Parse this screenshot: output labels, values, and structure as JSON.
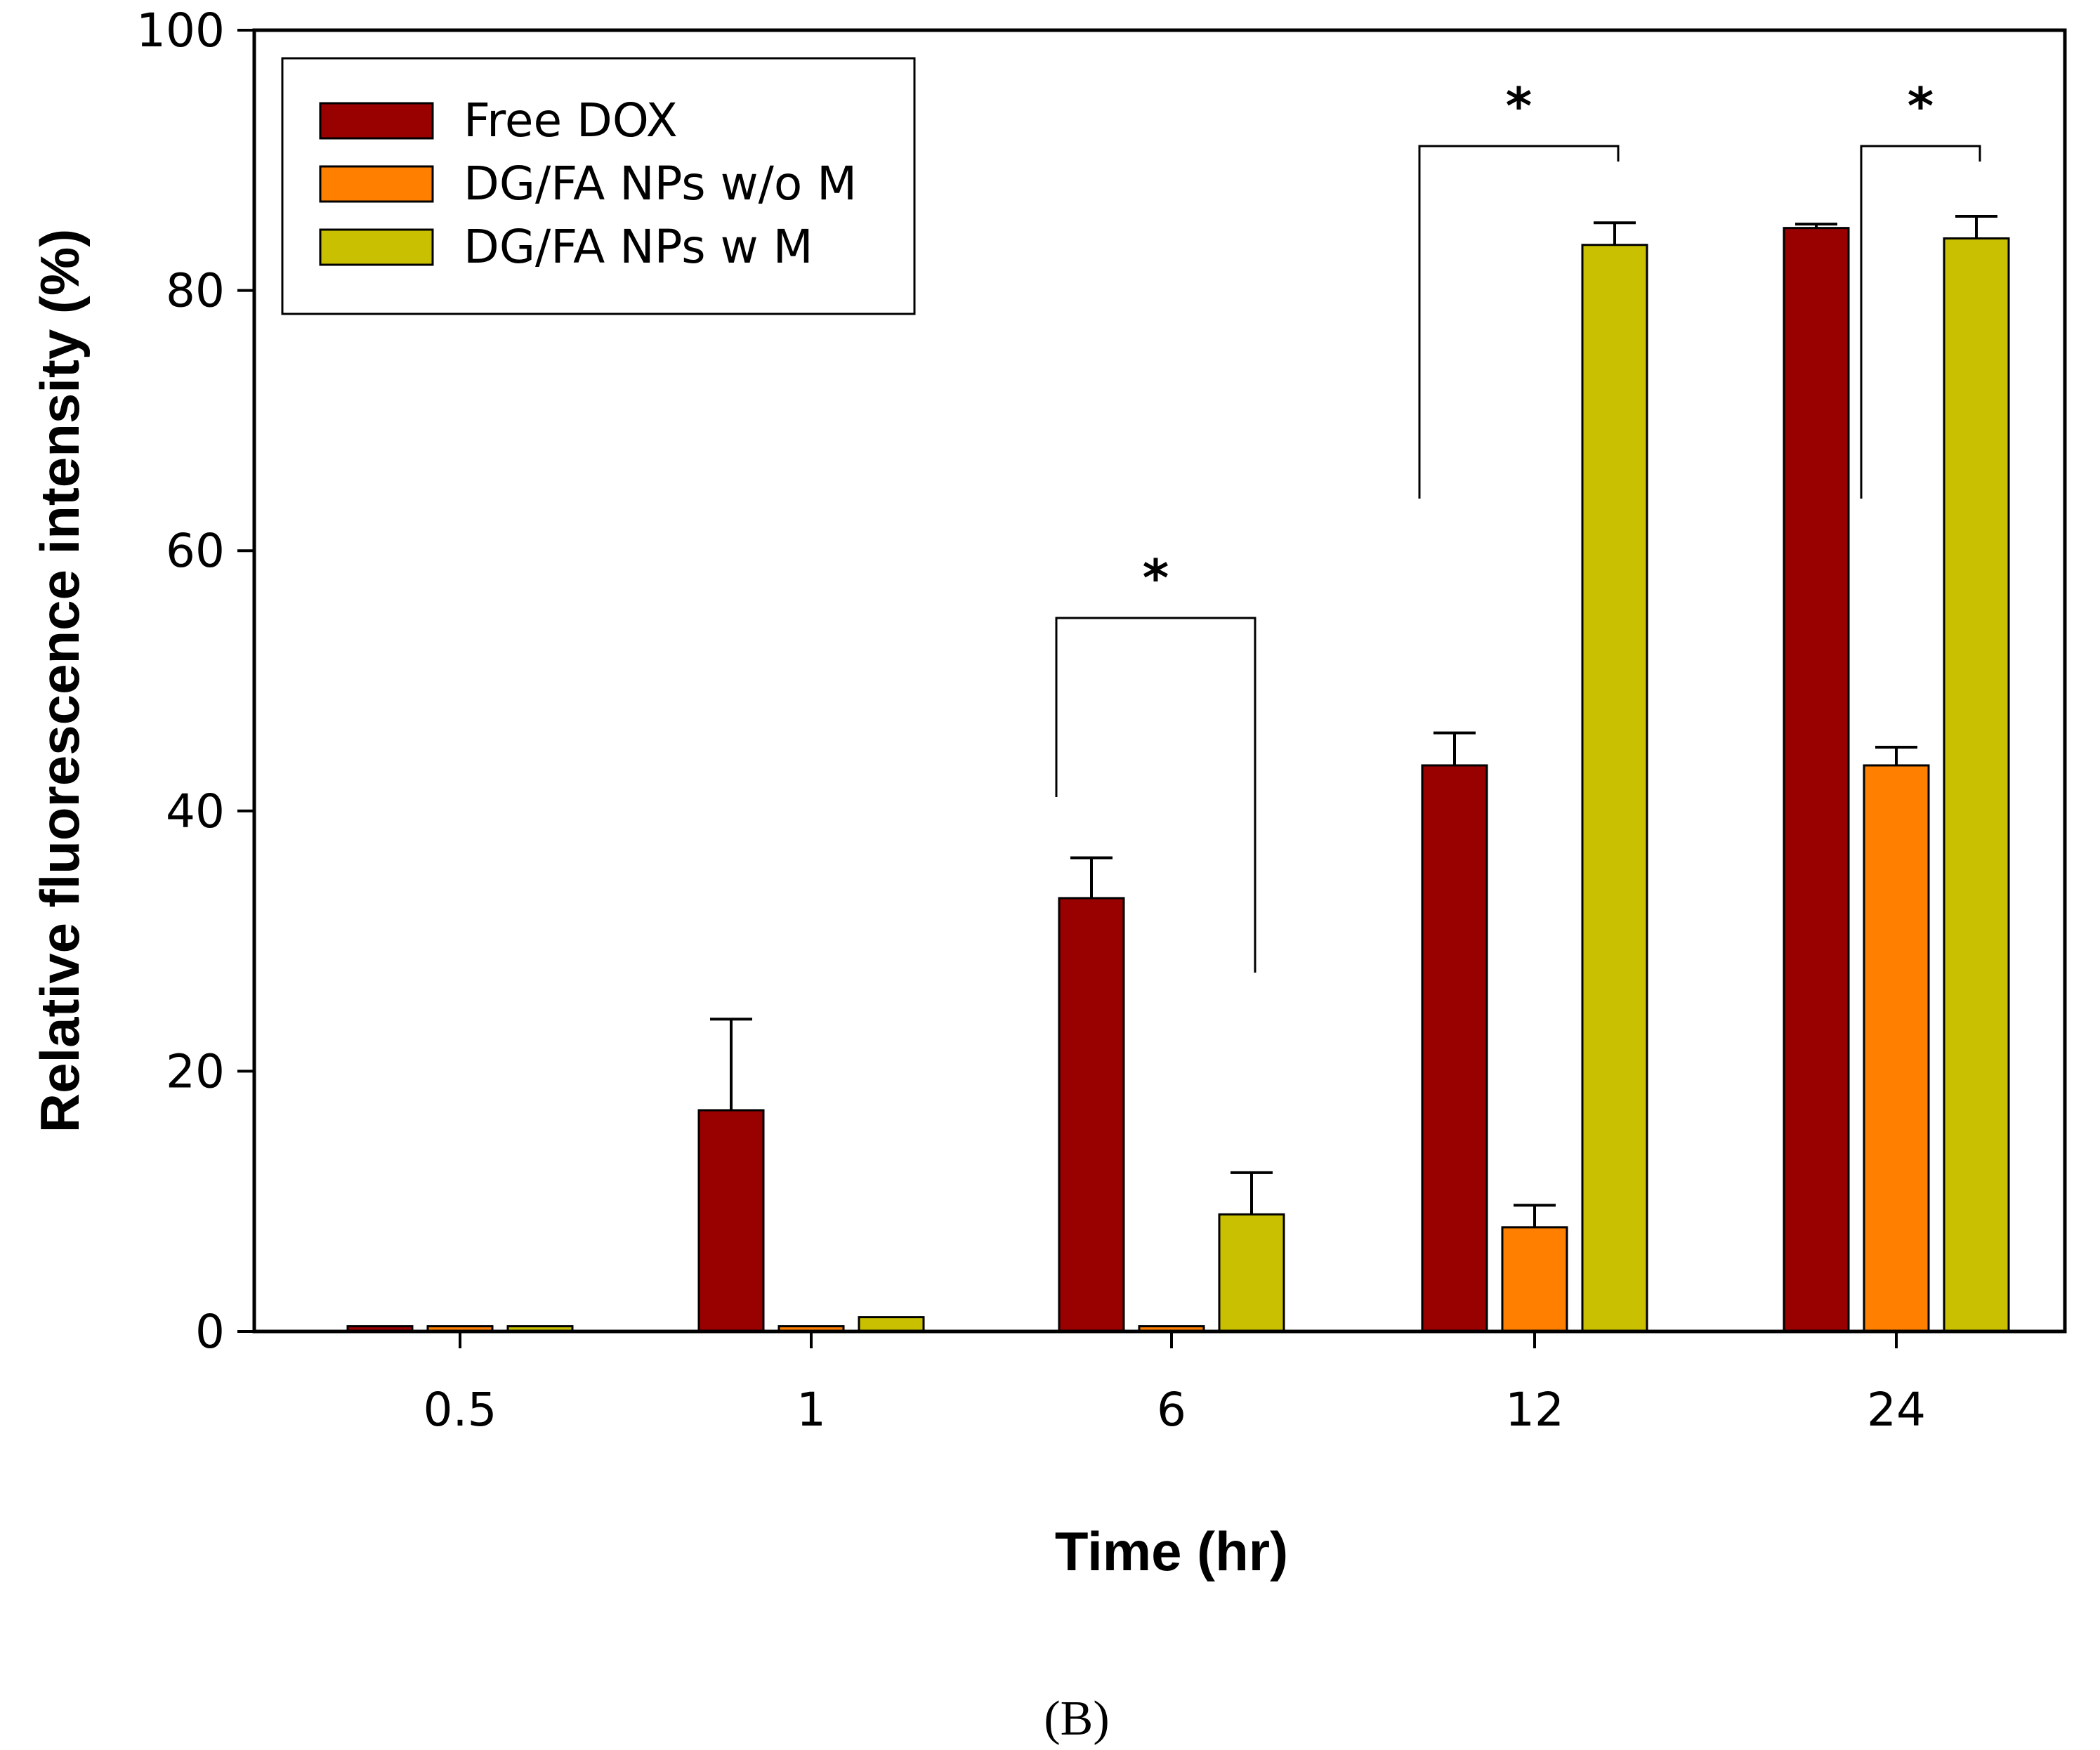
{
  "chart_data": {
    "type": "bar",
    "title": "",
    "xlabel": "Time (hr)",
    "ylabel": "Relative fluorescence intensity (%)",
    "ylim": [
      0,
      100
    ],
    "yticks": [
      0,
      20,
      40,
      60,
      80,
      100
    ],
    "categories": [
      "0.5",
      "1",
      "6",
      "12",
      "24"
    ],
    "series": [
      {
        "name": "Free DOX",
        "color": "#990000",
        "values": [
          0.4,
          17.0,
          33.3,
          43.5,
          84.8
        ],
        "errors": [
          0,
          7.0,
          3.1,
          2.5,
          0.3
        ]
      },
      {
        "name": "DG/FA NPs w/o M",
        "color": "#FF8000",
        "values": [
          0.4,
          0.4,
          0.4,
          8.0,
          43.5
        ],
        "errors": [
          0,
          0,
          0,
          1.7,
          1.4
        ]
      },
      {
        "name": "DG/FA NPs w M",
        "color": "#C8C000",
        "values": [
          0.4,
          1.1,
          9.0,
          83.5,
          84.0
        ],
        "errors": [
          0,
          0,
          3.2,
          1.7,
          1.7
        ]
      }
    ],
    "significance": [
      {
        "category": "6",
        "from_series": 0,
        "to_series": 2,
        "label": "*"
      },
      {
        "category": "12",
        "from_series": 0,
        "to_series": 2,
        "label": "*"
      },
      {
        "category": "24",
        "from_series": 1,
        "to_series": 2,
        "label": "*"
      }
    ],
    "legend_position": "top-left"
  },
  "panel_label": "(B)"
}
